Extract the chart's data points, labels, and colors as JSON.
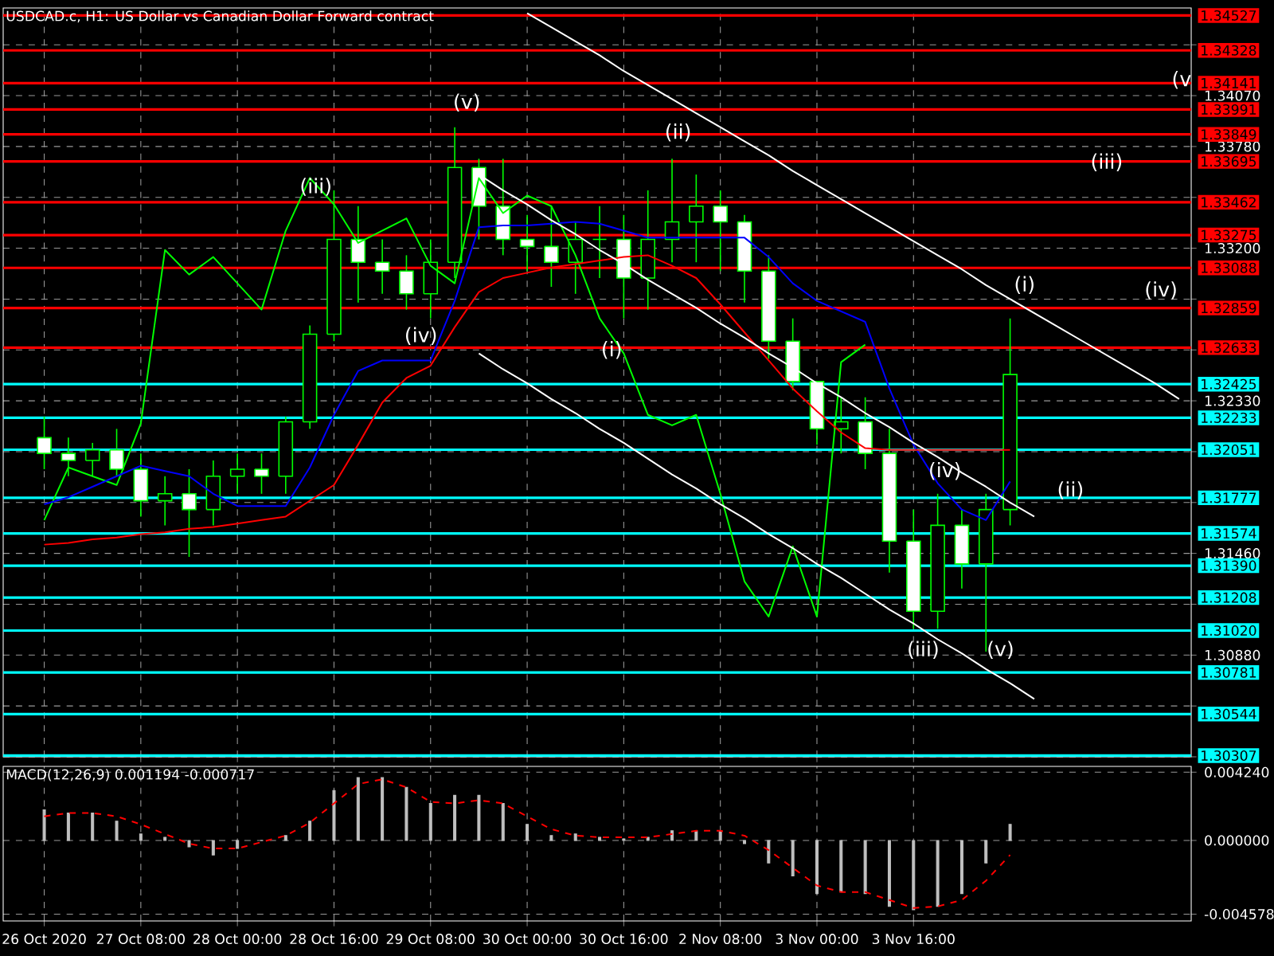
{
  "chart_data": [
    {
      "type": "candlestick",
      "title": "USDCAD.c, H1: US Dollar vs Canadian Dollar Forward contract",
      "color": "#00ff00",
      "categories": [
        null,
        null,
        null,
        null,
        null,
        null,
        null,
        null,
        null,
        null,
        null,
        null,
        null,
        null,
        null,
        null,
        null,
        null,
        null,
        null,
        null,
        null,
        null,
        null,
        null,
        null,
        null,
        null,
        null,
        null,
        null,
        null,
        null,
        null,
        null,
        null,
        null,
        null,
        null,
        null,
        null,
        null,
        null,
        null,
        null,
        null,
        null,
        null
      ],
      "ohlc": [
        [
          1.3212,
          1.3224,
          1.3194,
          1.3203
        ],
        [
          1.3203,
          1.3212,
          1.319,
          1.3199
        ],
        [
          1.3199,
          1.3209,
          1.319,
          1.3205
        ],
        [
          1.3205,
          1.3217,
          1.319,
          1.3194
        ],
        [
          1.3194,
          1.3203,
          1.3167,
          1.3176
        ],
        [
          1.3176,
          1.319,
          1.3162,
          1.318
        ],
        [
          1.318,
          1.3194,
          1.3144,
          1.3171
        ],
        [
          1.3171,
          1.3199,
          1.3162,
          1.319
        ],
        [
          1.319,
          1.3203,
          1.318,
          1.3194
        ],
        [
          1.3194,
          1.3203,
          1.318,
          1.319
        ],
        [
          1.319,
          1.3224,
          1.318,
          1.3221
        ],
        [
          1.3221,
          1.3276,
          1.3217,
          1.3271
        ],
        [
          1.3271,
          1.3353,
          1.3267,
          1.3325
        ],
        [
          1.3325,
          1.3344,
          1.3289,
          1.3312
        ],
        [
          1.3312,
          1.3325,
          1.3294,
          1.3307
        ],
        [
          1.3307,
          1.3316,
          1.3285,
          1.3294
        ],
        [
          1.3294,
          1.3325,
          1.328,
          1.3312
        ],
        [
          1.3312,
          1.3389,
          1.3303,
          1.3366
        ],
        [
          1.3366,
          1.3371,
          1.3325,
          1.3344
        ],
        [
          1.3344,
          1.3371,
          1.3316,
          1.3325
        ],
        [
          1.3325,
          1.3339,
          1.3307,
          1.3321
        ],
        [
          1.3321,
          1.3344,
          1.3298,
          1.3312
        ],
        [
          1.3312,
          1.3335,
          1.3294,
          1.3325
        ],
        [
          1.3325,
          1.3344,
          1.3303,
          1.3325
        ],
        [
          1.3325,
          1.3339,
          1.328,
          1.3303
        ],
        [
          1.3303,
          1.3353,
          1.3285,
          1.3325
        ],
        [
          1.3325,
          1.3371,
          1.3312,
          1.3335
        ],
        [
          1.3335,
          1.3362,
          1.3312,
          1.3344
        ],
        [
          1.3344,
          1.3353,
          1.3307,
          1.3335
        ],
        [
          1.3335,
          1.3339,
          1.3289,
          1.3307
        ],
        [
          1.3307,
          1.3316,
          1.3257,
          1.3267
        ],
        [
          1.3267,
          1.328,
          1.3239,
          1.3244
        ],
        [
          1.3244,
          1.3244,
          1.3208,
          1.3217
        ],
        [
          1.3217,
          1.3235,
          1.3203,
          1.3221
        ],
        [
          1.3221,
          1.3235,
          1.3194,
          1.3203
        ],
        [
          1.3203,
          1.3217,
          1.3135,
          1.3153
        ],
        [
          1.3153,
          1.3171,
          1.3103,
          1.3113
        ],
        [
          1.3113,
          1.318,
          1.3103,
          1.3162
        ],
        [
          1.3162,
          1.3171,
          1.3126,
          1.314
        ],
        [
          1.314,
          1.318,
          1.309,
          1.3171
        ],
        [
          1.3171,
          1.328,
          1.3162,
          1.3248
        ],
        null,
        null,
        null,
        null,
        null,
        null,
        null
      ],
      "series": [
        {
          "type": "line",
          "color": "#00ff00",
          "values": [
            1.3165,
            1.3195,
            1.319,
            1.3185,
            1.322,
            1.3319,
            1.3305,
            1.3315,
            1.33,
            1.3285,
            1.333,
            1.336,
            1.3345,
            1.3323,
            1.333,
            1.3337,
            1.331,
            1.33,
            1.336,
            1.334,
            1.335,
            1.3344,
            1.3316,
            1.328,
            1.326,
            1.3225,
            1.3219,
            1.3225,
            1.318,
            1.313,
            1.311,
            1.315,
            1.311,
            1.3255,
            1.3265,
            null,
            null,
            null,
            null,
            null,
            null,
            null,
            null,
            null,
            null,
            null,
            null,
            null
          ]
        },
        {
          "type": "line",
          "color": "#0000ff",
          "values": [
            1.3174,
            1.3178,
            1.3184,
            1.319,
            1.3196,
            1.3193,
            1.319,
            1.318,
            1.3173,
            1.3173,
            1.3173,
            1.3195,
            1.3225,
            1.325,
            1.3256,
            1.3256,
            1.3256,
            1.329,
            1.3332,
            1.3333,
            1.3333,
            1.3334,
            1.3335,
            1.3334,
            1.333,
            1.3326,
            1.3326,
            1.3326,
            1.3326,
            1.3326,
            1.3315,
            1.33,
            1.329,
            1.3284,
            1.3278,
            1.324,
            1.3208,
            1.3186,
            1.3171,
            1.3165,
            1.3187,
            null,
            null,
            null,
            null,
            null,
            null,
            null
          ]
        },
        {
          "type": "line",
          "color": "#ff0000",
          "values": [
            1.3151,
            1.3152,
            1.3154,
            1.3155,
            1.3157,
            1.3158,
            1.316,
            1.3161,
            1.3163,
            1.3165,
            1.3167,
            1.3176,
            1.3185,
            1.3208,
            1.3232,
            1.3246,
            1.3253,
            1.3275,
            1.3295,
            1.3303,
            1.3306,
            1.3309,
            1.3311,
            1.3313,
            1.3315,
            1.3316,
            1.331,
            1.3303,
            1.3288,
            1.3272,
            1.3256,
            1.324,
            1.3227,
            1.3215,
            1.3206,
            1.3205,
            1.3205,
            1.3205,
            1.3205,
            1.3205,
            1.3205,
            null,
            null,
            null,
            null,
            null,
            null,
            null
          ]
        },
        {
          "type": "line",
          "color": "#ffffff",
          "values": [
            null,
            null,
            null,
            null,
            null,
            null,
            null,
            null,
            null,
            null,
            null,
            null,
            null,
            null,
            null,
            null,
            null,
            null,
            null,
            null,
            1.3454,
            1.3446,
            1.3438,
            1.343,
            1.3421,
            1.3413,
            1.3405,
            1.3397,
            1.3389,
            1.3381,
            1.3373,
            1.3364,
            1.3356,
            1.3348,
            1.334,
            1.3332,
            1.3324,
            1.3316,
            1.3308,
            1.3299,
            1.3291,
            1.3283,
            1.3275,
            1.3267,
            1.3259,
            1.3251,
            1.3243,
            1.3234
          ]
        },
        {
          "type": "line",
          "color": "#ffffff",
          "values": [
            null,
            null,
            null,
            null,
            null,
            null,
            null,
            null,
            null,
            null,
            null,
            null,
            null,
            null,
            null,
            null,
            null,
            null,
            1.3362,
            1.3353,
            1.3345,
            1.3336,
            1.3328,
            1.3319,
            1.3311,
            1.3302,
            1.3294,
            1.3286,
            1.3277,
            1.3269,
            1.326,
            1.3252,
            1.3243,
            1.3235,
            1.3226,
            1.3218,
            1.3209,
            1.3201,
            1.3192,
            1.3184,
            1.3175,
            1.3167,
            null,
            null,
            null,
            null,
            null,
            null
          ]
        },
        {
          "type": "line",
          "color": "#ffffff",
          "values": [
            null,
            null,
            null,
            null,
            null,
            null,
            null,
            null,
            null,
            null,
            null,
            null,
            null,
            null,
            null,
            null,
            null,
            null,
            1.326,
            1.3251,
            1.3243,
            1.3234,
            1.3226,
            1.3217,
            1.3209,
            1.32,
            1.3191,
            1.3183,
            1.3174,
            1.3166,
            1.3157,
            1.3149,
            1.314,
            1.3132,
            1.3123,
            1.3114,
            1.3106,
            1.3097,
            1.3089,
            1.308,
            1.3072,
            1.3063,
            null,
            null,
            null,
            null,
            null,
            null
          ]
        }
      ],
      "ylim": [
        1.303,
        1.3457
      ],
      "yticks": [
        {
          "value": 1.303,
          "label": null
        },
        {
          "value": 1.3059,
          "label": null
        },
        {
          "value": 1.3088,
          "label": "1.30880"
        },
        {
          "value": 1.3117,
          "label": null
        },
        {
          "value": 1.3146,
          "label": "1.31460"
        },
        {
          "value": 1.3175,
          "label": null
        },
        {
          "value": 1.3204,
          "label": null
        },
        {
          "value": 1.3233,
          "label": "1.32330"
        },
        {
          "value": 1.3262,
          "label": null
        },
        {
          "value": 1.3291,
          "label": null
        },
        {
          "value": 1.332,
          "label": "1.33200"
        },
        {
          "value": 1.3349,
          "label": null
        },
        {
          "value": 1.3378,
          "label": "1.33780"
        },
        {
          "value": 1.3407,
          "label": "1.34070"
        },
        {
          "value": 1.3436,
          "label": null
        }
      ],
      "grid": true,
      "tick_labels": "y",
      "ref_lines": [
        {
          "axis": "y",
          "value": 1.34527,
          "label": "1.34527",
          "color": "#ff0000"
        },
        {
          "axis": "y",
          "value": 1.34328,
          "label": "1.34328",
          "color": "#ff0000"
        },
        {
          "axis": "y",
          "value": 1.34141,
          "label": "1.34141",
          "color": "#ff0000"
        },
        {
          "axis": "y",
          "value": 1.33991,
          "label": "1.33991",
          "color": "#ff0000"
        },
        {
          "axis": "y",
          "value": 1.33849,
          "label": "1.33849",
          "color": "#ff0000"
        },
        {
          "axis": "y",
          "value": 1.33695,
          "label": "1.33695",
          "color": "#ff0000"
        },
        {
          "axis": "y",
          "value": 1.33462,
          "label": "1.33462",
          "color": "#ff0000"
        },
        {
          "axis": "y",
          "value": 1.33275,
          "label": "1.33275",
          "color": "#ff0000"
        },
        {
          "axis": "y",
          "value": 1.33088,
          "label": "1.33088",
          "color": "#ff0000"
        },
        {
          "axis": "y",
          "value": 1.32859,
          "label": "1.32859",
          "color": "#ff0000"
        },
        {
          "axis": "y",
          "value": 1.32633,
          "label": "1.32633",
          "color": "#ff0000"
        },
        {
          "axis": "y",
          "value": 1.32425,
          "label": "1.32425",
          "color": "#00ffff"
        },
        {
          "axis": "y",
          "value": 1.32233,
          "label": "1.32233",
          "color": "#00ffff"
        },
        {
          "axis": "y",
          "value": 1.32051,
          "label": "1.32051",
          "color": "#00ffff"
        },
        {
          "axis": "y",
          "value": 1.31777,
          "label": "1.31777",
          "color": "#00ffff"
        },
        {
          "axis": "y",
          "value": 1.31574,
          "label": "1.31574",
          "color": "#00ffff"
        },
        {
          "axis": "y",
          "value": 1.3139,
          "label": "1.31390",
          "color": "#00ffff"
        },
        {
          "axis": "y",
          "value": 1.31208,
          "label": "1.31208",
          "color": "#00ffff"
        },
        {
          "axis": "y",
          "value": 1.3102,
          "label": "1.31020",
          "color": "#00ffff"
        },
        {
          "axis": "y",
          "value": 1.30781,
          "label": "1.30781",
          "color": "#00ffff"
        },
        {
          "axis": "y",
          "value": 1.30544,
          "label": "1.30544",
          "color": "#00ffff"
        },
        {
          "axis": "y",
          "value": 1.30307,
          "label": "1.30307",
          "color": "#00ffff"
        }
      ],
      "annotations": [
        "(v)",
        "(iii)",
        "(iv)",
        "(ii)",
        "(i)",
        "(iv)",
        "(iii)",
        "(v)",
        "(i)",
        "(ii)",
        "(iii)",
        "(iv)",
        "(v"
      ]
    },
    {
      "type": "bar",
      "title": "MACD(12,26,9) 0.001194 -0.000717",
      "categories": [
        "26 Oct 2020",
        null,
        null,
        null,
        "27 Oct 08:00",
        null,
        null,
        null,
        "28 Oct 00:00",
        null,
        null,
        null,
        "28 Oct 16:00",
        null,
        null,
        null,
        "29 Oct 08:00",
        null,
        null,
        null,
        "30 Oct 00:00",
        null,
        null,
        null,
        "30 Oct 16:00",
        null,
        null,
        null,
        "2 Nov 08:00",
        null,
        null,
        null,
        "3 Nov 00:00",
        null,
        null,
        null,
        "3 Nov 16:00",
        null,
        null,
        null,
        null,
        null,
        null,
        null,
        null,
        null,
        null,
        null
      ],
      "series": [
        {
          "type": "bar",
          "color": "#c0c0c0",
          "values": [
            0.0019,
            0.0017,
            0.0017,
            0.0012,
            0.0004,
            0.0002,
            -0.0004,
            -0.0009,
            -0.0005,
            0,
            0.0003,
            0.0012,
            0.0031,
            0.0039,
            0.0039,
            0.0033,
            0.0023,
            0.0028,
            0.0028,
            0.0023,
            0.001,
            0.0003,
            0.0004,
            0.0002,
            0.0001,
            0.0002,
            0.0006,
            0.0006,
            0.0006,
            -0.0002,
            -0.0014,
            -0.0022,
            -0.0033,
            -0.0032,
            -0.0033,
            -0.0041,
            -0.0043,
            -0.0041,
            -0.0033,
            -0.0014,
            0.001,
            null,
            null,
            null,
            null,
            null,
            null,
            null
          ]
        },
        {
          "type": "line",
          "color": "#ff0000",
          "line_style": "dashed",
          "values": [
            0.0015,
            0.0017,
            0.0017,
            0.0015,
            0.001,
            0.0004,
            -0.0002,
            -0.0005,
            -0.0005,
            -0.0001,
            0.0003,
            0.0011,
            0.0023,
            0.0035,
            0.0038,
            0.0033,
            0.0024,
            0.0023,
            0.0025,
            0.0023,
            0.0015,
            0.0007,
            0.0003,
            0.0002,
            0.0002,
            0.0002,
            0.0004,
            0.0006,
            0.0006,
            0.0003,
            -0.0006,
            -0.0017,
            -0.0028,
            -0.0032,
            -0.0032,
            -0.0037,
            -0.0042,
            -0.0041,
            -0.0037,
            -0.0025,
            -0.0009,
            null,
            null,
            null,
            null,
            null,
            null,
            null
          ]
        }
      ],
      "ylim": [
        -0.005,
        0.0046
      ],
      "yticks": [
        {
          "value": 0.00424,
          "label": "0.004240"
        },
        {
          "value": 0,
          "label": "0.000000"
        },
        {
          "value": -0.004578,
          "label": "-0.004578"
        }
      ],
      "grid": true
    }
  ]
}
